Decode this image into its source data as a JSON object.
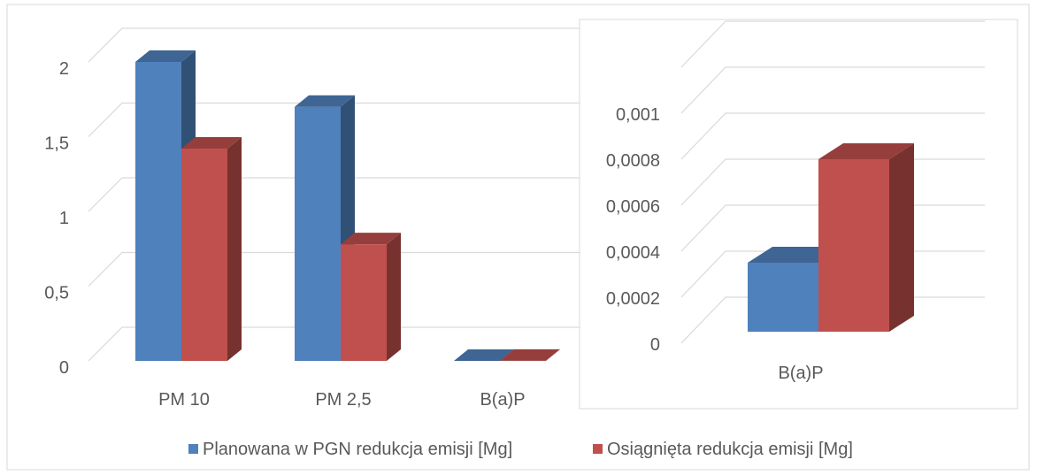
{
  "colors": {
    "series_planned": "#4F81BD",
    "series_achieved": "#C0504D",
    "gridline": "#D9D9D9",
    "text": "#595959"
  },
  "legend": {
    "items": [
      {
        "label": "Planowana w PGN redukcja emisji [Mg]",
        "color": "#4F81BD"
      },
      {
        "label": "Osiągnięta redukcja emisji [Mg]",
        "color": "#C0504D"
      }
    ]
  },
  "chart_data": [
    {
      "type": "bar",
      "style": "3d-clustered-column",
      "categories": [
        "PM 10",
        "PM 2,5",
        "B(a)P"
      ],
      "series": [
        {
          "name": "Planowana w PGN redukcja emisji [Mg]",
          "values": [
            2.0,
            1.7,
            0.0003
          ]
        },
        {
          "name": "Osiągnięta redukcja emisji [Mg]",
          "values": [
            1.42,
            0.78,
            0.00075
          ]
        }
      ],
      "ylim": [
        0,
        2
      ],
      "yticks": [
        "0",
        "0,5",
        "1",
        "1,5",
        "2"
      ],
      "grid": true,
      "legend": "bottom"
    },
    {
      "type": "bar",
      "style": "3d-clustered-column",
      "categories": [
        "B(a)P"
      ],
      "series": [
        {
          "name": "Planowana w PGN redukcja emisji [Mg]",
          "values": [
            0.0003
          ]
        },
        {
          "name": "Osiągnięta redukcja emisji [Mg]",
          "values": [
            0.00075
          ]
        }
      ],
      "ylim": [
        0,
        0.0012
      ],
      "yticks": [
        "0",
        "0,0002",
        "0,0004",
        "0,0006",
        "0,0008",
        "0,001"
      ],
      "grid": true
    }
  ]
}
